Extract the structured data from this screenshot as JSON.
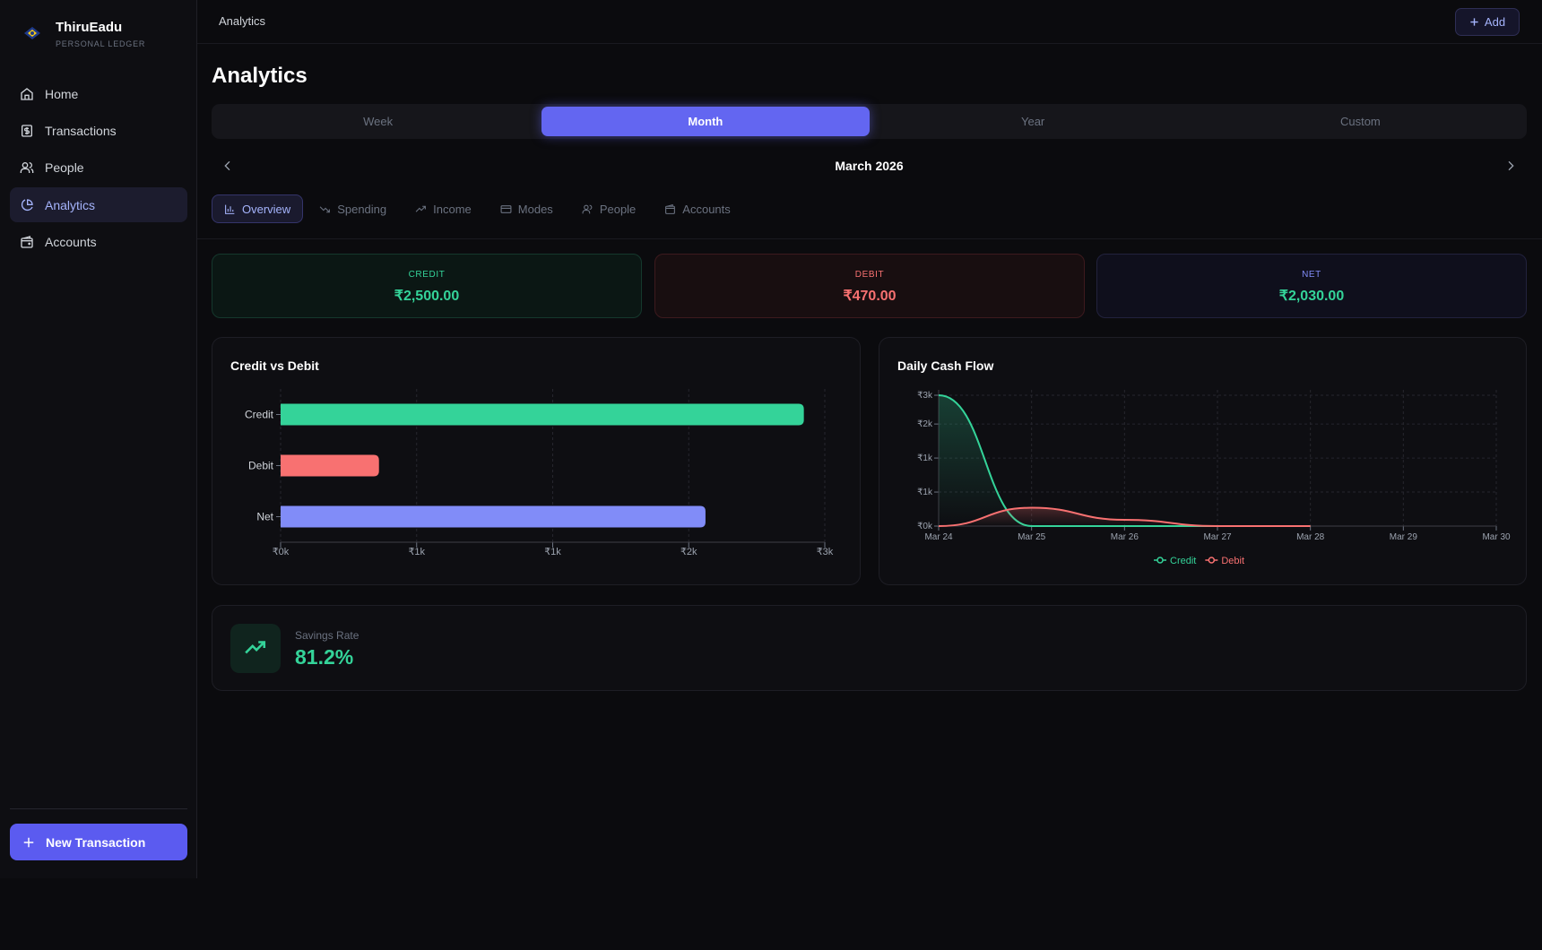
{
  "sidebar": {
    "brand": "ThiruEadu",
    "tagline": "PERSONAL LEDGER",
    "nav": [
      "Home",
      "Transactions",
      "People",
      "Analytics",
      "Accounts"
    ],
    "new_transaction": "New Transaction"
  },
  "header": {
    "breadcrumb": "Analytics",
    "add": "Add"
  },
  "page_title": "Analytics",
  "periods": [
    "Week",
    "Month",
    "Year",
    "Custom"
  ],
  "period_label": "March 2026",
  "tabs": [
    "Overview",
    "Spending",
    "Income",
    "Modes",
    "People",
    "Accounts"
  ],
  "summary": [
    {
      "label": "CREDIT",
      "value": "₹2,500.00"
    },
    {
      "label": "DEBIT",
      "value": "₹470.00"
    },
    {
      "label": "NET",
      "value": "₹2,030.00"
    }
  ],
  "savings": {
    "label": "Savings Rate",
    "value": "81.2%"
  },
  "chart_data": [
    {
      "type": "bar",
      "orientation": "horizontal",
      "title": "Credit vs Debit",
      "categories": [
        "Credit",
        "Debit",
        "Net"
      ],
      "values": [
        2500,
        470,
        2030
      ],
      "colors": [
        "#34d399",
        "#f87171",
        "#818cf8"
      ],
      "xlim": [
        0,
        2600
      ],
      "xticks": [
        {
          "value": 0,
          "label": "₹0k"
        },
        {
          "value": 650,
          "label": "₹1k"
        },
        {
          "value": 1300,
          "label": "₹1k"
        },
        {
          "value": 1950,
          "label": "₹2k"
        },
        {
          "value": 2600,
          "label": "₹3k"
        }
      ],
      "grid": true
    },
    {
      "type": "line",
      "title": "Daily Cash Flow",
      "categories": [
        "Mar 24",
        "Mar 25",
        "Mar 26",
        "Mar 27",
        "Mar 28",
        "Mar 29",
        "Mar 30"
      ],
      "series": [
        {
          "name": "Credit",
          "color": "#34d399",
          "values": [
            2500,
            0,
            0,
            0,
            0,
            null,
            null
          ]
        },
        {
          "name": "Debit",
          "color": "#f87171",
          "values": [
            0,
            350,
            120,
            0,
            0,
            null,
            null
          ]
        }
      ],
      "ylim": [
        0,
        2500
      ],
      "yticks": [
        {
          "value": 0,
          "label": "₹0k"
        },
        {
          "value": 650,
          "label": "₹1k"
        },
        {
          "value": 1300,
          "label": "₹1k"
        },
        {
          "value": 1950,
          "label": "₹2k"
        },
        {
          "value": 2500,
          "label": "₹3k"
        }
      ],
      "grid": true,
      "legend": "bottom"
    }
  ]
}
